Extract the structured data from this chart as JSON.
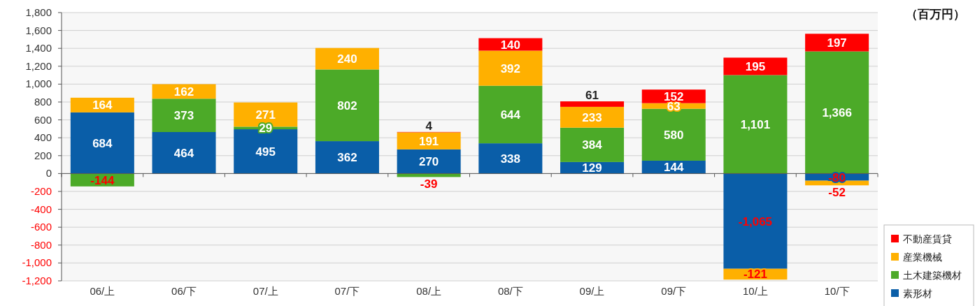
{
  "chart_data": {
    "type": "bar",
    "stacked": true,
    "annotations": [
      "（百万円）"
    ],
    "categories": [
      "06/上",
      "06/下",
      "07/上",
      "07/下",
      "08/上",
      "08/下",
      "09/上",
      "09/下",
      "10/上",
      "10/下"
    ],
    "series": [
      {
        "name": "素形材",
        "color": "#0a5ea8",
        "values": [
          684,
          464,
          495,
          362,
          270,
          338,
          129,
          144,
          -1065,
          -80
        ],
        "value_labels": [
          "684",
          "464",
          "495",
          "362",
          "270",
          "338",
          "129",
          "144",
          "-1,065",
          "-80"
        ]
      },
      {
        "name": "土木建築機材",
        "color": "#4caa28",
        "values": [
          -144,
          373,
          29,
          802,
          -39,
          644,
          384,
          580,
          1101,
          1366
        ],
        "value_labels": [
          "-144",
          "373",
          "29",
          "802",
          "-39",
          "644",
          "384",
          "580",
          "1,101",
          "1,366"
        ]
      },
      {
        "name": "産業機械",
        "color": "#ffb000",
        "values": [
          164,
          162,
          271,
          240,
          191,
          392,
          233,
          63,
          -121,
          -52
        ],
        "value_labels": [
          "164",
          "162",
          "271",
          "240",
          "191",
          "392",
          "233",
          "63",
          "-121",
          "-52"
        ]
      },
      {
        "name": "不動産賃貸",
        "color": "#ff0000",
        "values": [
          null,
          null,
          null,
          null,
          4,
          140,
          61,
          152,
          195,
          197
        ],
        "value_labels": [
          null,
          null,
          null,
          null,
          "4",
          "140",
          "61",
          "152",
          "195",
          "197"
        ]
      }
    ],
    "ylim": [
      -1200,
      1800
    ],
    "yticks": [
      {
        "value": -1200,
        "label": "-1,200"
      },
      {
        "value": -1000,
        "label": "-1,000"
      },
      -800,
      -600,
      -400,
      -200,
      0,
      200,
      400,
      600,
      800,
      {
        "value": 1000,
        "label": "1,000"
      },
      {
        "value": 1200,
        "label": "1,200"
      },
      {
        "value": 1400,
        "label": "1,400"
      },
      {
        "value": 1600,
        "label": "1,600"
      },
      {
        "value": 1800,
        "label": "1,800"
      }
    ],
    "grid": "y",
    "legend": "bottom right"
  }
}
